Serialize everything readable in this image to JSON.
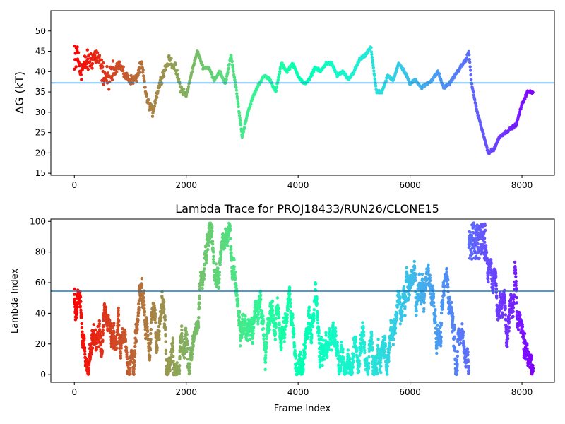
{
  "chart_data": [
    {
      "type": "scatter",
      "title": "",
      "xlabel": "",
      "ylabel": "ΔG (kT)",
      "xlim": [
        -420,
        8580
      ],
      "ylim": [
        14.5,
        55
      ],
      "xticks": [
        0,
        2000,
        4000,
        6000,
        8000
      ],
      "xtick_labels": [
        "0",
        "2000",
        "4000",
        "6000",
        "8000"
      ],
      "yticks": [
        15,
        20,
        25,
        30,
        35,
        40,
        45,
        50
      ],
      "ytick_labels": [
        "15",
        "20",
        "25",
        "30",
        "35",
        "40",
        "45",
        "50"
      ],
      "hline": 37.2,
      "hline_color": "#1f77b4",
      "colormap": "rainbow (red at frame 0 to violet at last frame)",
      "frame_count": 8200,
      "trace_outline": [
        [
          0,
          40
        ],
        [
          50,
          45
        ],
        [
          100,
          40
        ],
        [
          200,
          42
        ],
        [
          300,
          43
        ],
        [
          400,
          44
        ],
        [
          500,
          40
        ],
        [
          600,
          38
        ],
        [
          700,
          40
        ],
        [
          800,
          42
        ],
        [
          900,
          39
        ],
        [
          1000,
          38
        ],
        [
          1100,
          38
        ],
        [
          1200,
          42
        ],
        [
          1300,
          33
        ],
        [
          1400,
          30
        ],
        [
          1500,
          36
        ],
        [
          1600,
          40
        ],
        [
          1700,
          43
        ],
        [
          1800,
          41
        ],
        [
          1900,
          36
        ],
        [
          2000,
          34
        ],
        [
          2100,
          40
        ],
        [
          2200,
          45
        ],
        [
          2300,
          41
        ],
        [
          2400,
          41
        ],
        [
          2500,
          38
        ],
        [
          2600,
          40
        ],
        [
          2700,
          37
        ],
        [
          2800,
          44
        ],
        [
          2900,
          35
        ],
        [
          3000,
          24
        ],
        [
          3100,
          30
        ],
        [
          3200,
          34
        ],
        [
          3300,
          37
        ],
        [
          3400,
          39
        ],
        [
          3500,
          38
        ],
        [
          3600,
          35
        ],
        [
          3700,
          42
        ],
        [
          3800,
          40
        ],
        [
          3900,
          42
        ],
        [
          4000,
          39
        ],
        [
          4100,
          37
        ],
        [
          4200,
          38
        ],
        [
          4300,
          41
        ],
        [
          4400,
          40
        ],
        [
          4500,
          42
        ],
        [
          4600,
          42
        ],
        [
          4700,
          39
        ],
        [
          4800,
          40
        ],
        [
          4900,
          38
        ],
        [
          5000,
          40
        ],
        [
          5100,
          43
        ],
        [
          5200,
          44
        ],
        [
          5300,
          46
        ],
        [
          5400,
          35
        ],
        [
          5500,
          35
        ],
        [
          5600,
          39
        ],
        [
          5700,
          38
        ],
        [
          5800,
          42
        ],
        [
          5900,
          40
        ],
        [
          6000,
          37
        ],
        [
          6100,
          38
        ],
        [
          6200,
          36
        ],
        [
          6300,
          37
        ],
        [
          6400,
          38
        ],
        [
          6500,
          40
        ],
        [
          6600,
          36
        ],
        [
          6700,
          37
        ],
        [
          6800,
          39
        ],
        [
          6900,
          41
        ],
        [
          7000,
          43
        ],
        [
          7050,
          45
        ],
        [
          7100,
          37
        ],
        [
          7200,
          30
        ],
        [
          7300,
          25
        ],
        [
          7400,
          20
        ],
        [
          7500,
          21
        ],
        [
          7600,
          24
        ],
        [
          7700,
          25
        ],
        [
          7800,
          26
        ],
        [
          7900,
          27
        ],
        [
          8000,
          32
        ],
        [
          8100,
          35
        ],
        [
          8200,
          35
        ]
      ]
    },
    {
      "type": "scatter",
      "title": "Lambda Trace for PROJ18433/RUN26/CLONE15",
      "xlabel": "Frame Index",
      "ylabel": "Lambda Index",
      "xlim": [
        -420,
        8580
      ],
      "ylim": [
        -5,
        101.5
      ],
      "xticks": [
        0,
        2000,
        4000,
        6000,
        8000
      ],
      "xtick_labels": [
        "0",
        "2000",
        "4000",
        "6000",
        "8000"
      ],
      "yticks": [
        0,
        20,
        40,
        60,
        80,
        100
      ],
      "ytick_labels": [
        "0",
        "20",
        "40",
        "60",
        "80",
        "100"
      ],
      "hline": 54.5,
      "hline_color": "#1f77b4",
      "colormap": "rainbow (red at frame 0 to violet at last frame)",
      "frame_count": 8200,
      "value_range": [
        0,
        99
      ]
    }
  ]
}
